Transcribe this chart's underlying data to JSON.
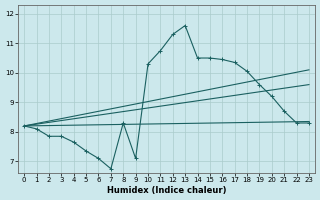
{
  "xlabel": "Humidex (Indice chaleur)",
  "background_color": "#cce8ec",
  "grid_color": "#aacccc",
  "line_color": "#1a6060",
  "xlim": [
    -0.5,
    23.5
  ],
  "ylim": [
    6.6,
    12.3
  ],
  "xticks": [
    0,
    1,
    2,
    3,
    4,
    5,
    6,
    7,
    8,
    9,
    10,
    11,
    12,
    13,
    14,
    15,
    16,
    17,
    18,
    19,
    20,
    21,
    22,
    23
  ],
  "yticks": [
    7,
    8,
    9,
    10,
    11,
    12
  ],
  "line1_x": [
    0,
    1,
    2,
    3,
    4,
    5,
    6,
    7,
    8,
    9,
    10,
    11,
    12,
    13,
    14,
    15,
    16,
    17,
    18,
    19,
    20,
    21,
    22,
    23
  ],
  "line1_y": [
    8.2,
    8.1,
    7.85,
    7.85,
    7.65,
    7.35,
    7.1,
    6.75,
    8.3,
    7.1,
    10.3,
    10.75,
    11.3,
    11.6,
    10.5,
    10.5,
    10.45,
    10.35,
    10.05,
    9.6,
    9.2,
    8.7,
    8.3,
    8.3
  ],
  "line2_x": [
    0,
    23
  ],
  "line2_y": [
    8.2,
    8.35
  ],
  "line3_x": [
    0,
    23
  ],
  "line3_y": [
    8.2,
    9.6
  ],
  "line4_x": [
    0,
    23
  ],
  "line4_y": [
    8.2,
    10.1
  ]
}
